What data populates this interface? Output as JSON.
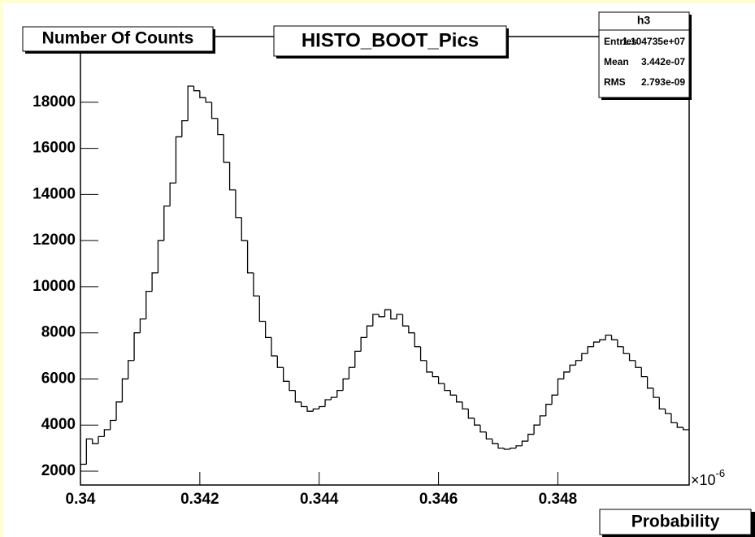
{
  "chart_data": {
    "type": "histogram",
    "title": "HISTO_BOOT_Pics",
    "y_label": "Number Of Counts",
    "x_label": "Probability",
    "x_exponent_base": "×10",
    "x_exponent_power": "-6",
    "stats": {
      "name": "h3",
      "rows": [
        [
          "Entries",
          "1.104735e+07"
        ],
        [
          "Mean",
          "3.442e-07"
        ],
        [
          "RMS",
          "2.793e-09"
        ]
      ]
    },
    "color": "#000000",
    "bins": [
      0.34,
      0.3401,
      0.3402,
      0.3403,
      0.3404,
      0.3405,
      0.3406,
      0.3407,
      0.3408,
      0.3409,
      0.341,
      0.3411,
      0.3412,
      0.3413,
      0.3414,
      0.3415,
      0.3416,
      0.3417,
      0.3418,
      0.3419,
      0.342,
      0.3421,
      0.3422,
      0.3423,
      0.3424,
      0.3425,
      0.3426,
      0.3427,
      0.3428,
      0.3429,
      0.343,
      0.3431,
      0.3432,
      0.3433,
      0.3434,
      0.3435,
      0.3436,
      0.3437,
      0.3438,
      0.3439,
      0.344,
      0.3441,
      0.3442,
      0.3443,
      0.3444,
      0.3445,
      0.3446,
      0.3447,
      0.3448,
      0.3449,
      0.345,
      0.3451,
      0.3452,
      0.3453,
      0.3454,
      0.3455,
      0.3456,
      0.3457,
      0.3458,
      0.3459,
      0.346,
      0.3461,
      0.3462,
      0.3463,
      0.3464,
      0.3465,
      0.3466,
      0.3467,
      0.3468,
      0.3469,
      0.347,
      0.3471,
      0.3472,
      0.3473,
      0.3474,
      0.3475,
      0.3476,
      0.3477,
      0.3478,
      0.3479,
      0.348,
      0.3481,
      0.3482,
      0.3483,
      0.3484,
      0.3485,
      0.3486,
      0.3487,
      0.3488,
      0.3489,
      0.349,
      0.3491,
      0.3492,
      0.3493,
      0.3494,
      0.3495,
      0.3496,
      0.3497,
      0.3498,
      0.3499,
      0.35,
      0.3501,
      0.3502
    ],
    "values": [
      2300,
      3400,
      3200,
      3500,
      3800,
      4200,
      5000,
      6000,
      6800,
      8000,
      8600,
      9800,
      10600,
      12000,
      13500,
      14500,
      16500,
      17200,
      18700,
      18500,
      18200,
      18000,
      17300,
      16600,
      15400,
      14200,
      13000,
      12000,
      10600,
      9600,
      8500,
      7800,
      7000,
      6500,
      5900,
      5500,
      5000,
      4800,
      4600,
      4700,
      4800,
      5100,
      5200,
      5500,
      6000,
      6500,
      7200,
      7800,
      8300,
      8800,
      8700,
      9000,
      8600,
      8800,
      8300,
      8000,
      7400,
      6800,
      6300,
      6100,
      5800,
      5500,
      5300,
      5000,
      4700,
      4300,
      4000,
      3700,
      3400,
      3200,
      3000,
      2950,
      3000,
      3100,
      3300,
      3600,
      4000,
      4400,
      4900,
      5300,
      6000,
      6300,
      6600,
      6800,
      7100,
      7400,
      7600,
      7700,
      7900,
      7700,
      7400,
      7100,
      6800,
      6500,
      6100,
      5600,
      5200,
      4700,
      4500,
      4100,
      3900,
      3800
    ],
    "xlim": [
      0.34,
      0.3502
    ],
    "ylim": [
      1400,
      20850
    ],
    "xticks": [
      {
        "value": 0.34,
        "label": "0.34"
      },
      0.342,
      0.344,
      0.346,
      0.348
    ],
    "yticks": [
      2000,
      4000,
      6000,
      8000,
      10000,
      12000,
      14000,
      16000,
      18000
    ]
  }
}
